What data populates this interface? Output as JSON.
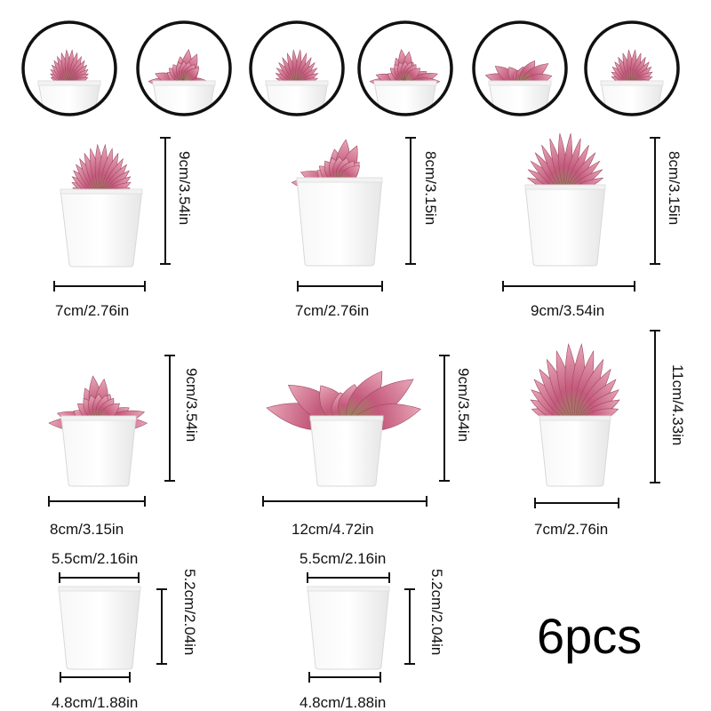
{
  "colors": {
    "ink": "#111111",
    "pot": "#ffffff",
    "pot_shade": "#e6e6e6",
    "leaf_pink": "#c45a7c",
    "leaf_light": "#e8a7b8",
    "leaf_green": "#8a8f52"
  },
  "icons": [
    "succulent-thumbnail-icon",
    "succulent-plant-icon",
    "white-square-pot-icon",
    "dimension-line-icon"
  ],
  "plants": [
    {
      "height": "9cm/3.54in",
      "width": "7cm/2.76in"
    },
    {
      "height": "8cm/3.15in",
      "width": "7cm/2.76in"
    },
    {
      "height": "8cm/3.15in",
      "width": "9cm/3.54in"
    },
    {
      "height": "9cm/3.54in",
      "width": "8cm/3.15in"
    },
    {
      "height": "9cm/3.54in",
      "width": "12cm/4.72in"
    },
    {
      "height": "11cm/4.33in",
      "width": "7cm/2.76in"
    }
  ],
  "pots": [
    {
      "top": "5.5cm/2.16in",
      "height": "5.2cm/2.04in",
      "bottom": "4.8cm/1.88in"
    },
    {
      "top": "5.5cm/2.16in",
      "height": "5.2cm/2.04in",
      "bottom": "4.8cm/1.88in"
    }
  ],
  "count_label": "6pcs"
}
